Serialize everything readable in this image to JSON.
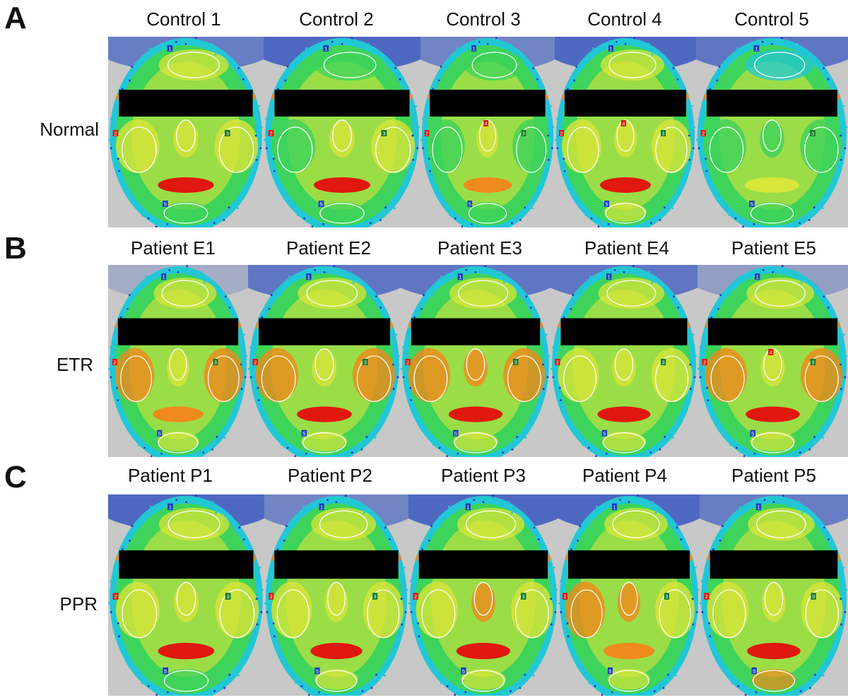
{
  "panels": [
    {
      "letter": "A",
      "row_label": "Normal",
      "subjects": [
        "Control 1",
        "Control 2",
        "Control 3",
        "Control 4",
        "Control 5"
      ]
    },
    {
      "letter": "B",
      "row_label": "ETR",
      "subjects": [
        "Patient E1",
        "Patient E2",
        "Patient E3",
        "Patient E4",
        "Patient E5"
      ]
    },
    {
      "letter": "C",
      "row_label": "PPR",
      "subjects": [
        "Patient P1",
        "Patient P2",
        "Patient P3",
        "Patient P4",
        "Patient P5"
      ]
    }
  ],
  "roi_markers": [
    "1",
    "2",
    "3",
    "4",
    "5"
  ],
  "colors": {
    "heat_low": "#1a3fbf",
    "heat_mid_low": "#22c7d6",
    "heat_mid": "#3ed35a",
    "heat_mid_high": "#d8e53a",
    "heat_high": "#f08a1c",
    "heat_max": "#e01810",
    "background_gray": "#c8c8c8",
    "redaction_bar": "#000000",
    "roi_outline": "#ffffff"
  }
}
